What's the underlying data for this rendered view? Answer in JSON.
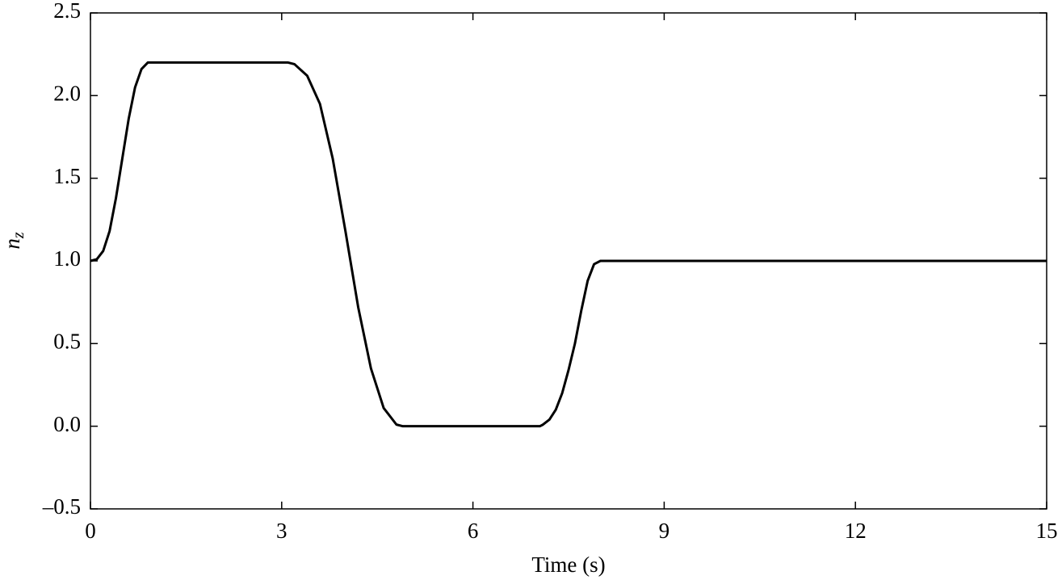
{
  "chart_data": {
    "type": "line",
    "xlabel": "Time (s)",
    "ylabel": "n",
    "ylabel_sub": "z",
    "series": [
      {
        "color": "#000000",
        "x": [
          0,
          0.1,
          0.2,
          0.3,
          0.4,
          0.5,
          0.6,
          0.7,
          0.8,
          0.9,
          1.0,
          2.0,
          3.0,
          3.1,
          3.2,
          3.4,
          3.6,
          3.8,
          4.0,
          4.2,
          4.4,
          4.6,
          4.8,
          4.9,
          5.0,
          6.0,
          7.0,
          7.05,
          7.1,
          7.2,
          7.3,
          7.4,
          7.5,
          7.6,
          7.7,
          7.8,
          7.9,
          8.0,
          15
        ],
        "values": [
          1.0,
          1.01,
          1.06,
          1.18,
          1.38,
          1.62,
          1.86,
          2.05,
          2.16,
          2.2,
          2.2,
          2.2,
          2.2,
          2.2,
          2.19,
          2.12,
          1.95,
          1.62,
          1.18,
          0.72,
          0.35,
          0.11,
          0.01,
          0,
          0,
          0,
          0,
          0,
          0.01,
          0.04,
          0.1,
          0.2,
          0.34,
          0.5,
          0.7,
          0.88,
          0.98,
          1.0,
          1.0
        ]
      }
    ],
    "xlim": [
      0,
      15
    ],
    "xticks": [
      0,
      3,
      6,
      9,
      12,
      15
    ],
    "ylim": [
      -0.5,
      2.5
    ],
    "yticks": [
      {
        "value": -0.5,
        "label": "–0.5"
      },
      {
        "value": 0,
        "label": "0.0"
      },
      0.5,
      {
        "value": 1,
        "label": "1.0"
      },
      1.5,
      {
        "value": 2,
        "label": "2.0"
      },
      2.5
    ],
    "grid": false
  }
}
